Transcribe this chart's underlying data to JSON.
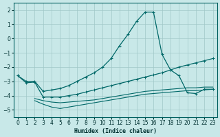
{
  "xlabel": "Humidex (Indice chaleur)",
  "background_color": "#c8e8e8",
  "grid_color": "#a0c8c8",
  "line_color": "#006868",
  "xlim": [
    -0.5,
    23.5
  ],
  "ylim": [
    -5.5,
    2.5
  ],
  "yticks": [
    -5,
    -4,
    -3,
    -2,
    -1,
    0,
    1,
    2
  ],
  "xticks": [
    0,
    1,
    2,
    3,
    4,
    5,
    6,
    7,
    8,
    9,
    10,
    11,
    12,
    13,
    14,
    15,
    16,
    17,
    18,
    19,
    20,
    21,
    22,
    23
  ],
  "line1_x": [
    0,
    1,
    2,
    3,
    4,
    5,
    6,
    7,
    8,
    9,
    10,
    11,
    12,
    13,
    14,
    15,
    16,
    17,
    18,
    19,
    20,
    21,
    22,
    23
  ],
  "line1_y": [
    -2.6,
    -3.0,
    -3.0,
    -3.7,
    -3.6,
    -3.5,
    -3.3,
    -3.0,
    -2.7,
    -2.4,
    -2.0,
    -1.4,
    -0.5,
    0.3,
    1.2,
    1.85,
    1.85,
    -1.1,
    -2.2,
    -2.6,
    -3.8,
    -3.85,
    -3.55,
    -3.55
  ],
  "line2_x": [
    0,
    1,
    2,
    3,
    4,
    5,
    6,
    7,
    8,
    9,
    10,
    11,
    12,
    13,
    14,
    15,
    16,
    17,
    18,
    19,
    20,
    21,
    22,
    23
  ],
  "line2_y": [
    -2.6,
    -3.1,
    -3.05,
    -4.1,
    -4.1,
    -4.1,
    -4.0,
    -3.9,
    -3.75,
    -3.6,
    -3.45,
    -3.3,
    -3.15,
    -3.0,
    -2.85,
    -2.7,
    -2.55,
    -2.4,
    -2.2,
    -2.0,
    -1.85,
    -1.7,
    -1.55,
    -1.4
  ],
  "line3_x": [
    2,
    3,
    4,
    5,
    6,
    7,
    8,
    9,
    10,
    11,
    12,
    13,
    14,
    15,
    16,
    17,
    18,
    19,
    20,
    21,
    22,
    23
  ],
  "line3_y": [
    -4.2,
    -4.35,
    -4.45,
    -4.5,
    -4.45,
    -4.4,
    -4.35,
    -4.3,
    -4.2,
    -4.1,
    -4.0,
    -3.9,
    -3.8,
    -3.7,
    -3.65,
    -3.6,
    -3.55,
    -3.5,
    -3.45,
    -3.45,
    -3.4,
    -3.4
  ],
  "line4_x": [
    2,
    3,
    4,
    5,
    6,
    7,
    8,
    9,
    10,
    11,
    12,
    13,
    14,
    15,
    16,
    17,
    18,
    19,
    20,
    21,
    22,
    23
  ],
  "line4_y": [
    -4.35,
    -4.6,
    -4.8,
    -4.9,
    -4.8,
    -4.7,
    -4.6,
    -4.5,
    -4.4,
    -4.3,
    -4.2,
    -4.1,
    -4.0,
    -3.9,
    -3.85,
    -3.8,
    -3.75,
    -3.7,
    -3.65,
    -3.65,
    -3.6,
    -3.55
  ]
}
